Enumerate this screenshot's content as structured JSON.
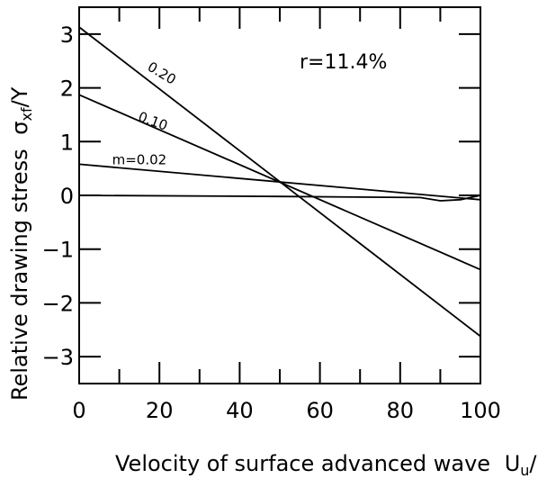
{
  "chart_data": {
    "type": "line",
    "xlabel": "Velocity of surface advanced wave",
    "xlabel_symbol": "U",
    "xlabel_sub1": "u",
    "xlabel_sep": "/U",
    "xlabel_sub2": "f",
    "ylabel": "Relative drawing stress",
    "ylabel_symbol": "σ",
    "ylabel_sub": "xf",
    "ylabel_tail": "/Y",
    "annotation": "r=11.4%",
    "xlim": [
      0,
      100
    ],
    "ylim": [
      -3.5,
      3.5
    ],
    "x_ticks": [
      0,
      20,
      40,
      60,
      80,
      100
    ],
    "y_ticks": [
      -3,
      -2,
      -1,
      0,
      1,
      2,
      3
    ],
    "x_tick_labels": [
      "0",
      "20",
      "40",
      "60",
      "80",
      "100"
    ],
    "y_tick_labels": [
      "−3",
      "−2",
      "−1",
      "0",
      "1",
      "2",
      "3"
    ],
    "grid": false,
    "series": [
      {
        "name": "0.20",
        "x": [
          0,
          100
        ],
        "y": [
          3.13,
          -2.62
        ],
        "label_x": 20,
        "label_y": 2.2,
        "label_rotate": 31
      },
      {
        "name": "0.10",
        "x": [
          0,
          100
        ],
        "y": [
          1.87,
          -1.38
        ],
        "label_x": 18,
        "label_y": 1.3,
        "label_rotate": 20
      },
      {
        "name": "m=0.02",
        "x": [
          0,
          100
        ],
        "y": [
          0.58,
          -0.08
        ],
        "label_x": 15,
        "label_y": 0.58,
        "label_rotate": 0
      },
      {
        "name": "",
        "x": [
          0,
          50,
          85,
          90,
          95,
          100
        ],
        "y": [
          0.0,
          -0.02,
          -0.04,
          -0.1,
          -0.08,
          0.0
        ]
      }
    ]
  }
}
